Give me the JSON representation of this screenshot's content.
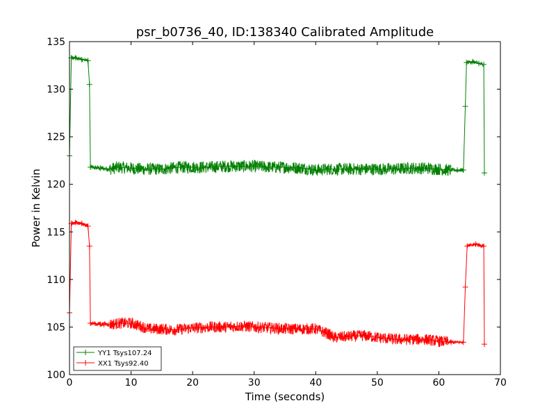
{
  "chart_data": {
    "type": "line",
    "title": "psr_b0736_40, ID:138340 Calibrated Amplitude",
    "xlabel": "Time (seconds)",
    "ylabel": "Power in Kelvin",
    "xlim": [
      0,
      70
    ],
    "ylim": [
      100,
      135
    ],
    "xticks": [
      0,
      10,
      20,
      30,
      40,
      50,
      60,
      70
    ],
    "yticks": [
      100,
      105,
      110,
      115,
      120,
      125,
      130,
      135
    ],
    "grid": false,
    "legend_position": "lower-left",
    "marker": "plus",
    "series": [
      {
        "name": "YY1 Tsys107.24",
        "color": "#008000",
        "points": [
          [
            0.0,
            123.0
          ],
          [
            0.3,
            133.3
          ],
          [
            1.0,
            133.3
          ],
          [
            2.0,
            133.1
          ],
          [
            3.0,
            133.0
          ],
          [
            3.25,
            130.5
          ],
          [
            3.4,
            121.8
          ],
          [
            5.0,
            121.7
          ],
          [
            6.5,
            121.6
          ],
          [
            8.0,
            121.8
          ],
          [
            10.0,
            121.7
          ],
          [
            12.0,
            121.6
          ],
          [
            15.0,
            121.6
          ],
          [
            18.0,
            121.8
          ],
          [
            20.0,
            121.8
          ],
          [
            23.0,
            121.8
          ],
          [
            25.0,
            121.9
          ],
          [
            28.0,
            121.9
          ],
          [
            30.0,
            121.9
          ],
          [
            33.0,
            121.8
          ],
          [
            35.0,
            121.8
          ],
          [
            38.0,
            121.7
          ],
          [
            40.0,
            121.5
          ],
          [
            42.0,
            121.6
          ],
          [
            45.0,
            121.6
          ],
          [
            48.0,
            121.6
          ],
          [
            50.0,
            121.6
          ],
          [
            53.0,
            121.6
          ],
          [
            55.0,
            121.7
          ],
          [
            58.0,
            121.7
          ],
          [
            60.0,
            121.6
          ],
          [
            61.5,
            121.5
          ],
          [
            63.0,
            121.5
          ],
          [
            64.0,
            121.5
          ],
          [
            64.3,
            128.2
          ],
          [
            64.5,
            132.8
          ],
          [
            65.5,
            132.9
          ],
          [
            66.5,
            132.7
          ],
          [
            67.3,
            132.6
          ],
          [
            67.4,
            121.2
          ]
        ],
        "noise_segments": [
          {
            "x": [
              3.4,
              6.5
            ],
            "amplitude": 0.5
          },
          {
            "x": [
              6.5,
              62.0
            ],
            "amplitude": 1.3
          },
          {
            "x": [
              62.0,
              64.0
            ],
            "amplitude": 0.4
          },
          {
            "x": [
              0.3,
              3.1
            ],
            "amplitude": 0.4
          },
          {
            "x": [
              64.5,
              67.3
            ],
            "amplitude": 0.4
          }
        ]
      },
      {
        "name": "XX1 Tsys92.40",
        "color": "#ff0000",
        "points": [
          [
            0.0,
            106.5
          ],
          [
            0.3,
            115.9
          ],
          [
            1.0,
            116.0
          ],
          [
            2.0,
            115.9
          ],
          [
            3.0,
            115.6
          ],
          [
            3.25,
            113.5
          ],
          [
            3.4,
            105.4
          ],
          [
            5.0,
            105.3
          ],
          [
            7.0,
            105.3
          ],
          [
            8.0,
            105.4
          ],
          [
            10.0,
            105.4
          ],
          [
            11.0,
            105.2
          ],
          [
            13.0,
            104.8
          ],
          [
            15.0,
            104.8
          ],
          [
            17.0,
            104.7
          ],
          [
            20.0,
            104.9
          ],
          [
            23.0,
            105.0
          ],
          [
            25.0,
            105.0
          ],
          [
            28.0,
            105.1
          ],
          [
            30.0,
            105.0
          ],
          [
            33.0,
            104.9
          ],
          [
            35.0,
            104.8
          ],
          [
            38.0,
            104.8
          ],
          [
            40.0,
            104.8
          ],
          [
            42.0,
            104.3
          ],
          [
            43.0,
            103.9
          ],
          [
            45.0,
            104.0
          ],
          [
            48.0,
            104.1
          ],
          [
            50.0,
            103.9
          ],
          [
            53.0,
            103.7
          ],
          [
            55.0,
            103.7
          ],
          [
            58.0,
            103.7
          ],
          [
            60.0,
            103.5
          ],
          [
            62.0,
            103.4
          ],
          [
            64.0,
            103.4
          ],
          [
            64.3,
            109.2
          ],
          [
            64.6,
            113.5
          ],
          [
            66.0,
            113.7
          ],
          [
            67.3,
            113.5
          ],
          [
            67.4,
            103.2
          ]
        ],
        "noise_segments": [
          {
            "x": [
              3.4,
              6.5
            ],
            "amplitude": 0.5
          },
          {
            "x": [
              6.5,
              61.5
            ],
            "amplitude": 1.2
          },
          {
            "x": [
              61.5,
              64.0
            ],
            "amplitude": 0.4
          },
          {
            "x": [
              0.3,
              3.1
            ],
            "amplitude": 0.4
          },
          {
            "x": [
              64.6,
              67.3
            ],
            "amplitude": 0.4
          }
        ]
      }
    ]
  }
}
